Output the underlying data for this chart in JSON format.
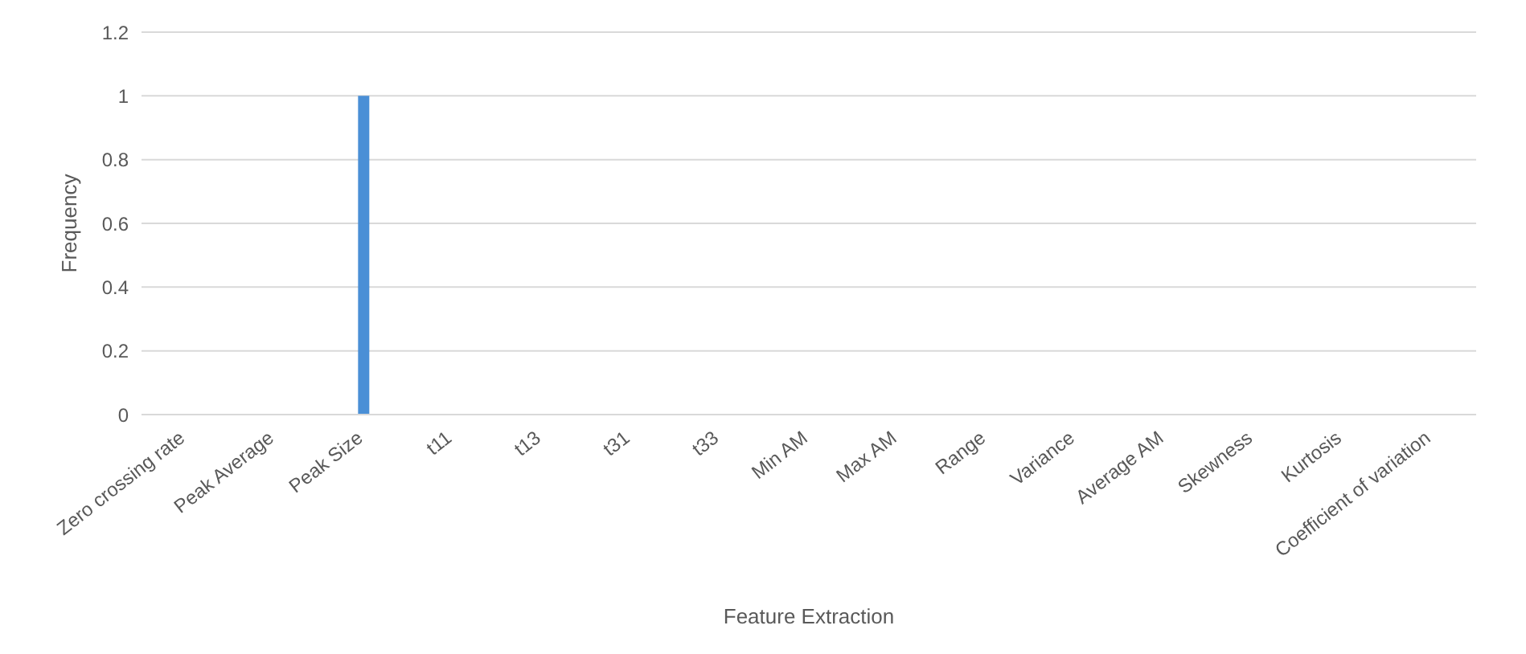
{
  "chart_data": {
    "type": "bar",
    "xlabel": "Feature Extraction",
    "ylabel": "Frequency",
    "categories": [
      "Zero crossing rate",
      "Peak Average",
      "Peak Size",
      "t11",
      "t13",
      "t31",
      "t33",
      "Min AM",
      "Max AM",
      "Range",
      "Variance",
      "Average AM",
      "Skewness",
      "Kurtosis",
      "Coefficient of variation"
    ],
    "values": [
      0,
      0,
      1,
      0,
      0,
      0,
      0,
      0,
      0,
      0,
      0,
      0,
      0,
      0,
      0
    ],
    "color": "#4a8fd6",
    "ylim": [
      0,
      1.2
    ],
    "yticks": [
      0,
      0.2,
      0.4,
      0.6,
      0.8,
      1,
      1.2
    ],
    "grid": "y"
  }
}
